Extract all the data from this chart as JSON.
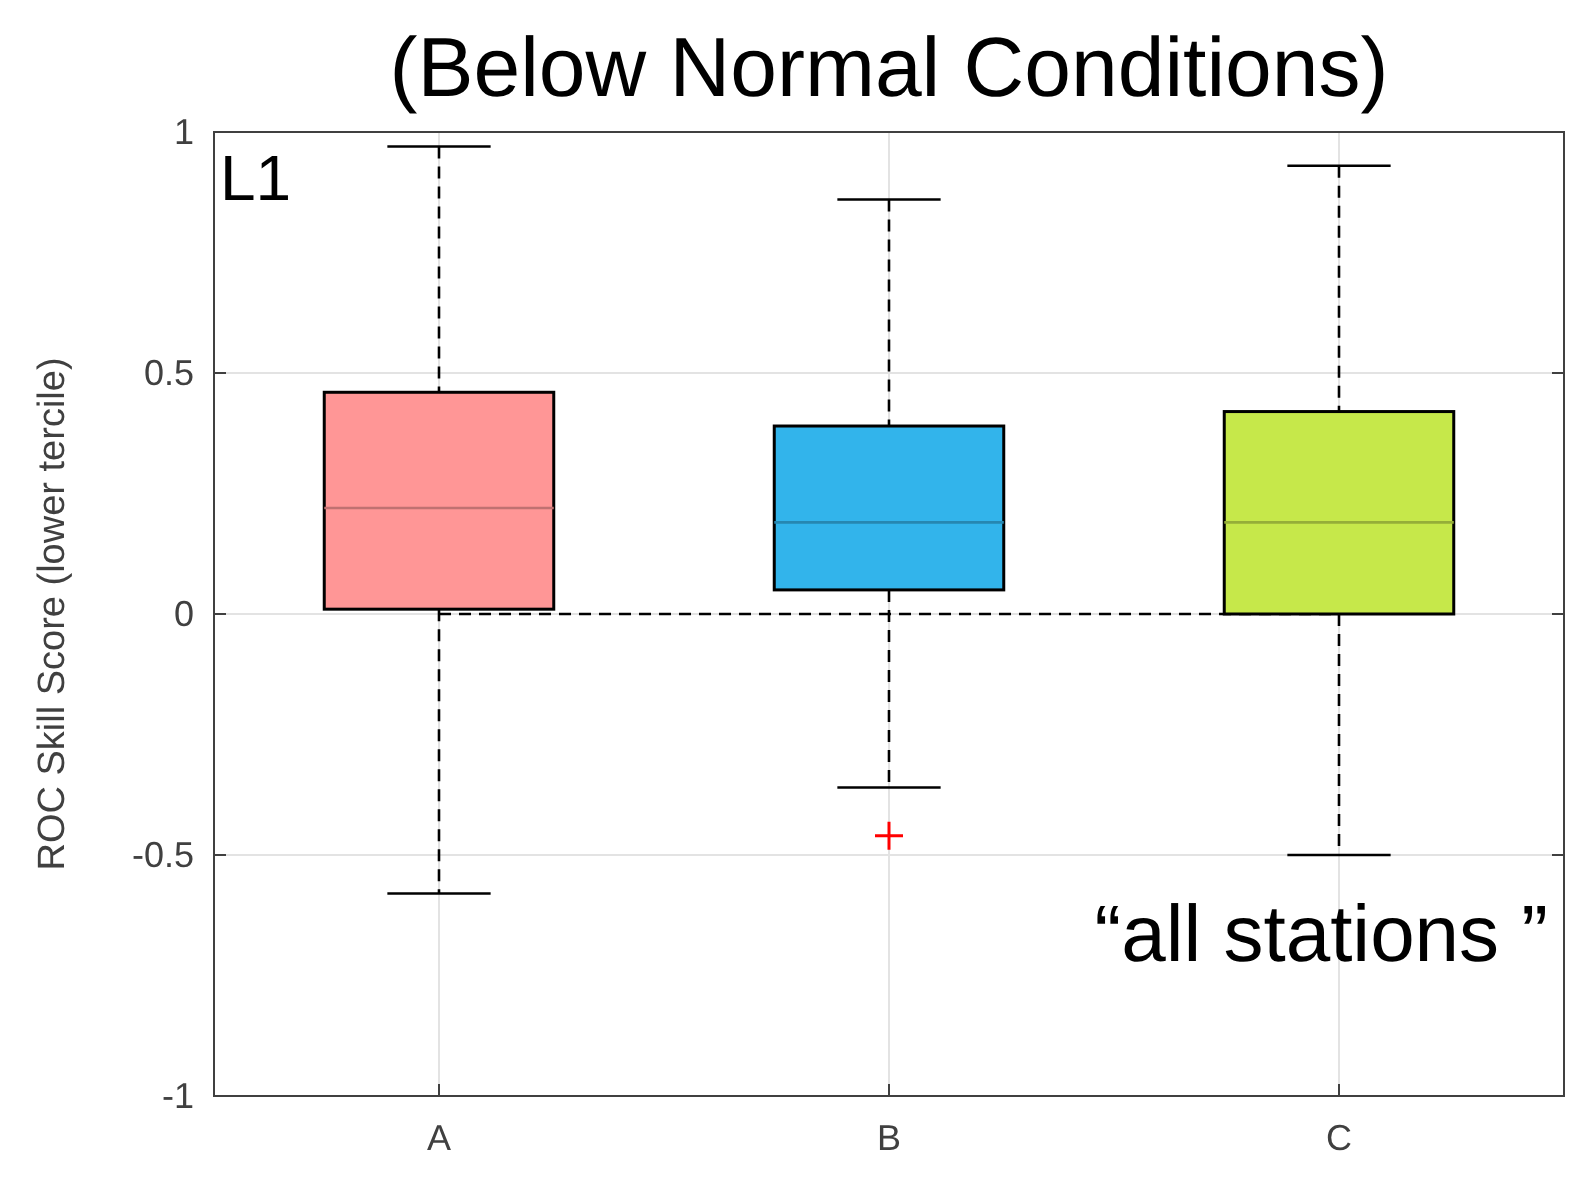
{
  "chart_data": {
    "type": "box",
    "title": "(Below Normal Conditions)",
    "ylabel": "ROC Skill Score (lower tercile)",
    "categories": [
      "A",
      "B",
      "C"
    ],
    "colors": [
      "#ff9696",
      "#32b4eb",
      "#c6e84a"
    ],
    "boxes": [
      {
        "low": -0.58,
        "q1": 0.01,
        "median": 0.22,
        "q3": 0.46,
        "high": 0.97
      },
      {
        "low": -0.36,
        "q1": 0.05,
        "median": 0.19,
        "q3": 0.39,
        "high": 0.86,
        "outliers": [
          -0.46
        ]
      },
      {
        "low": -0.5,
        "q1": 0,
        "median": 0.19,
        "q3": 0.42,
        "high": 0.93
      }
    ],
    "ylim": [
      -1,
      1
    ],
    "yticks": [
      -1,
      -0.5,
      0,
      0.5,
      1
    ],
    "grid": true,
    "ref_lines": [
      {
        "axis": "y",
        "value": 0,
        "line_style": "dashed",
        "color": "#000000"
      }
    ],
    "annotations": [
      "L1",
      "“all stations ”"
    ]
  }
}
